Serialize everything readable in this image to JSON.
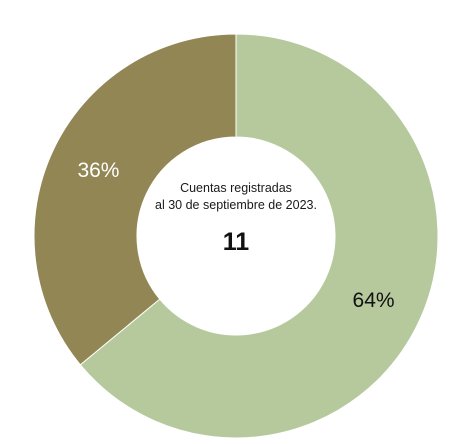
{
  "chart_data": {
    "type": "pie",
    "variant": "donut",
    "categories": [
      "",
      ""
    ],
    "values": [
      64,
      36
    ],
    "value_labels": [
      "64%",
      "36%"
    ],
    "colors": [
      "#b6c99d",
      "#928654"
    ],
    "center_caption_line1": "Cuentas registradas",
    "center_caption_line2": "al 30 de septiembre de 2023.",
    "center_value": "11"
  }
}
